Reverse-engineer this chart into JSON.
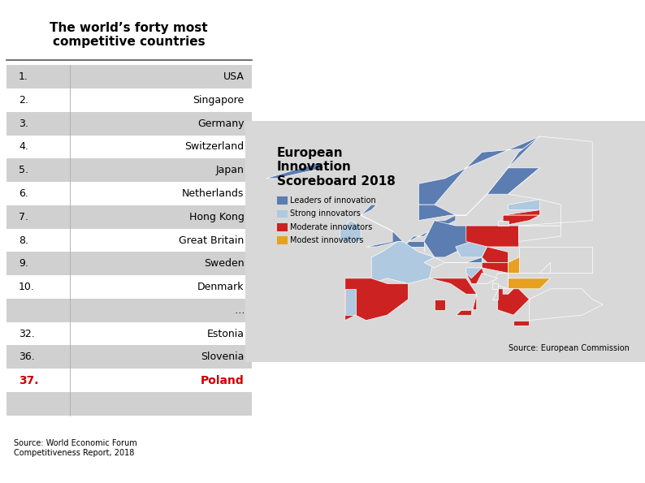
{
  "title": "The world’s forty most\ncompetitive countries",
  "map_title": "European\nInnovation\nScoreboard 2018",
  "source_left": "Source: World Economic Forum\nCompetitiveness Report, 2018",
  "source_right": "Source: European Commission",
  "ranks": [
    {
      "rank": "1.",
      "country": "USA",
      "bold": false,
      "red": false,
      "shaded": true
    },
    {
      "rank": "2.",
      "country": "Singapore",
      "bold": false,
      "red": false,
      "shaded": false
    },
    {
      "rank": "3.",
      "country": "Germany",
      "bold": false,
      "red": false,
      "shaded": true
    },
    {
      "rank": "4.",
      "country": "Switzerland",
      "bold": false,
      "red": false,
      "shaded": false
    },
    {
      "rank": "5.",
      "country": "Japan",
      "bold": false,
      "red": false,
      "shaded": true
    },
    {
      "rank": "6.",
      "country": "Netherlands",
      "bold": false,
      "red": false,
      "shaded": false
    },
    {
      "rank": "7.",
      "country": "Hong Kong",
      "bold": false,
      "red": false,
      "shaded": true
    },
    {
      "rank": "8.",
      "country": "Great Britain",
      "bold": false,
      "red": false,
      "shaded": false
    },
    {
      "rank": "9.",
      "country": "Sweden",
      "bold": false,
      "red": false,
      "shaded": true
    },
    {
      "rank": "10.",
      "country": "Denmark",
      "bold": false,
      "red": false,
      "shaded": false
    },
    {
      "rank": "",
      "country": "…",
      "bold": false,
      "red": false,
      "shaded": true
    },
    {
      "rank": "32.",
      "country": "Estonia",
      "bold": false,
      "red": false,
      "shaded": false
    },
    {
      "rank": "36.",
      "country": "Slovenia",
      "bold": false,
      "red": false,
      "shaded": true
    },
    {
      "rank": "37.",
      "country": "Poland",
      "bold": true,
      "red": true,
      "shaded": false
    },
    {
      "rank": "",
      "country": "",
      "bold": false,
      "red": false,
      "shaded": true
    }
  ],
  "legend_items": [
    {
      "color": "#5b7db1",
      "label": "Leaders of innovation"
    },
    {
      "color": "#aec9e0",
      "label": "Strong innovators"
    },
    {
      "color": "#cc2222",
      "label": "Moderate innovators"
    },
    {
      "color": "#e8a020",
      "label": "Modest innovators"
    }
  ],
  "bg_color": "#ffffff",
  "table_shade_color": "#d0d0d0",
  "divider_color": "#555555",
  "title_fontsize": 11,
  "map_title_fontsize": 11,
  "row_fontsize": 9,
  "source_fontsize": 7
}
